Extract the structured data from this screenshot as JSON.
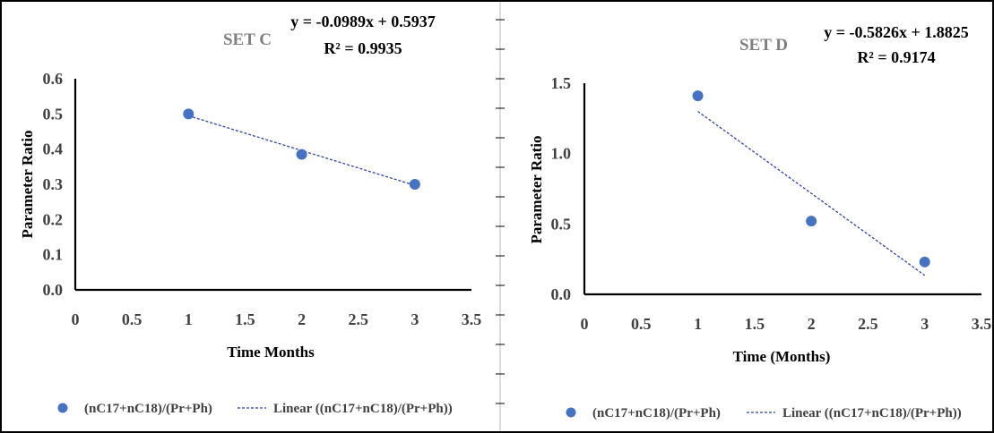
{
  "chart_data": [
    {
      "type": "scatter",
      "title": "SET C",
      "equation": "y = -0.0989x + 0.5937",
      "r_squared": "R² = 0.9935",
      "xlabel": "Time Months",
      "ylabel": "Parameter Ratio",
      "xlim": [
        0,
        3.5
      ],
      "ylim": [
        0,
        0.6
      ],
      "x_ticks": [
        "0",
        "0.5",
        "1",
        "1.5",
        "2",
        "2.5",
        "3",
        "3.5"
      ],
      "y_ticks": [
        "0.0",
        "0.1",
        "0.2",
        "0.3",
        "0.4",
        "0.5",
        "0.6"
      ],
      "grid": false,
      "legend_position": "bottom",
      "series": [
        {
          "name": "(nC17+nC18)/(Pr+Ph)",
          "x": [
            1,
            2,
            3
          ],
          "y": [
            0.5,
            0.385,
            0.3
          ],
          "color": "#4472c4"
        }
      ],
      "trendline": {
        "name": "Linear ((nC17+nC18)/(Pr+Ph))",
        "slope": -0.0989,
        "intercept": 0.5937,
        "x_range": [
          1,
          3
        ],
        "color": "#2f3fb0"
      }
    },
    {
      "type": "scatter",
      "title": "SET D",
      "equation": "y = -0.5826x + 1.8825",
      "r_squared": "R² = 0.9174",
      "xlabel": "Time (Months)",
      "ylabel": "Parameter Ratio",
      "xlim": [
        0,
        3.5
      ],
      "ylim": [
        0,
        1.5
      ],
      "x_ticks": [
        "0",
        "0.5",
        "1",
        "1.5",
        "2",
        "2.5",
        "3",
        "3.5"
      ],
      "y_ticks": [
        "0.0",
        "0.5",
        "1.0",
        "1.5"
      ],
      "grid": false,
      "legend_position": "bottom",
      "series": [
        {
          "name": "(nC17+nC18)/(Pr+Ph)",
          "x": [
            1,
            2,
            3
          ],
          "y": [
            1.41,
            0.52,
            0.23
          ],
          "color": "#4472c4"
        }
      ],
      "trendline": {
        "name": "Linear ((nC17+nC18)/(Pr+Ph))",
        "slope": -0.5826,
        "intercept": 1.8825,
        "x_range": [
          1,
          3
        ],
        "color": "#2f3fb0"
      }
    }
  ]
}
